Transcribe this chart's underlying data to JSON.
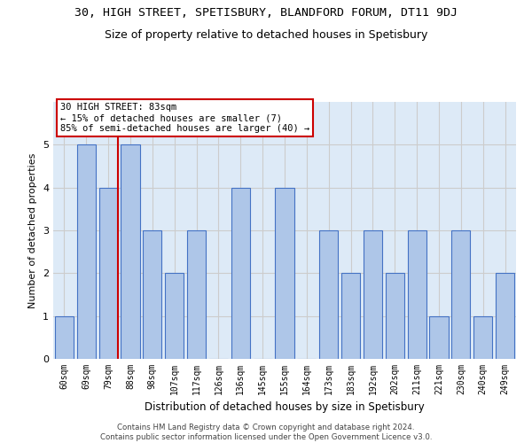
{
  "title": "30, HIGH STREET, SPETISBURY, BLANDFORD FORUM, DT11 9DJ",
  "subtitle": "Size of property relative to detached houses in Spetisbury",
  "xlabel": "Distribution of detached houses by size in Spetisbury",
  "ylabel": "Number of detached properties",
  "categories": [
    "60sqm",
    "69sqm",
    "79sqm",
    "88sqm",
    "98sqm",
    "107sqm",
    "117sqm",
    "126sqm",
    "136sqm",
    "145sqm",
    "155sqm",
    "164sqm",
    "173sqm",
    "183sqm",
    "192sqm",
    "202sqm",
    "211sqm",
    "221sqm",
    "230sqm",
    "240sqm",
    "249sqm"
  ],
  "values": [
    1,
    5,
    4,
    5,
    3,
    2,
    3,
    0,
    4,
    0,
    4,
    0,
    3,
    2,
    3,
    2,
    3,
    1,
    3,
    1,
    2
  ],
  "bar_color": "#aec6e8",
  "bar_edge_color": "#4472c4",
  "highlight_index": 2,
  "highlight_line_color": "#cc0000",
  "annotation_text": "30 HIGH STREET: 83sqm\n← 15% of detached houses are smaller (7)\n85% of semi-detached houses are larger (40) →",
  "annotation_box_color": "#ffffff",
  "annotation_box_edge_color": "#cc0000",
  "ylim": [
    0,
    6
  ],
  "yticks": [
    0,
    1,
    2,
    3,
    4,
    5,
    6
  ],
  "grid_color": "#cccccc",
  "plot_bg_color": "#ddeaf7",
  "footer_line1": "Contains HM Land Registry data © Crown copyright and database right 2024.",
  "footer_line2": "Contains public sector information licensed under the Open Government Licence v3.0."
}
